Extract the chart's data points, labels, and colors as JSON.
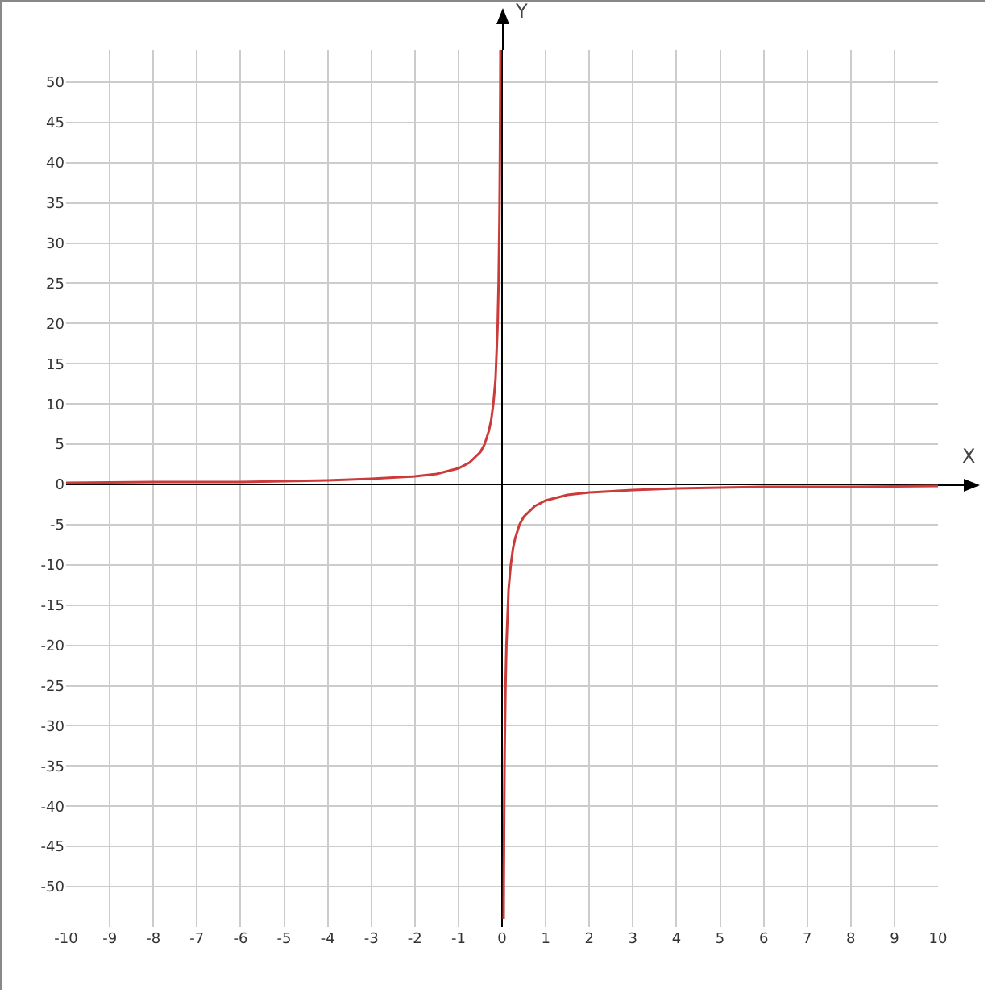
{
  "chart_data": {
    "type": "line",
    "annotations": [
      "X",
      "Y"
    ],
    "x": [
      -10,
      -8,
      -6,
      -5,
      -4,
      -3,
      -2,
      -1.5,
      -1,
      -0.75,
      -0.5,
      -0.4,
      -0.3,
      -0.25,
      -0.2,
      -0.15,
      -0.1,
      -0.08,
      -0.06,
      -0.05,
      -0.04,
      -0.037,
      0,
      0.037,
      0.04,
      0.05,
      0.06,
      0.08,
      0.1,
      0.15,
      0.2,
      0.25,
      0.3,
      0.4,
      0.5,
      0.75,
      1,
      1.5,
      2,
      3,
      4,
      5,
      6,
      8,
      10
    ],
    "series": [
      {
        "color": "#cc3a3a",
        "values": [
          0.2,
          0.3,
          0.3,
          0.4,
          0.5,
          0.7,
          1,
          1.3,
          2,
          2.7,
          4,
          5,
          6.7,
          8,
          10,
          13,
          20,
          25,
          33,
          40,
          50,
          54,
          null,
          -54,
          -50,
          -40,
          -33,
          -25,
          -20,
          -13,
          -10,
          -8,
          -6.7,
          -5,
          -4,
          -2.7,
          -2,
          -1.3,
          -1,
          -0.7,
          -0.5,
          -0.4,
          -0.3,
          -0.3,
          -0.2
        ]
      }
    ],
    "xlim": [
      -10,
      10
    ],
    "ylim": [
      -55,
      54
    ],
    "xticks": [
      -10,
      -9,
      -8,
      -7,
      -6,
      -5,
      -4,
      -3,
      -2,
      -1,
      0,
      1,
      2,
      3,
      4,
      5,
      6,
      7,
      8,
      9,
      10
    ],
    "yticks": [
      -50,
      -45,
      -40,
      -35,
      -30,
      -25,
      -20,
      -15,
      -10,
      -5,
      0,
      5,
      10,
      15,
      20,
      25,
      30,
      35,
      40,
      45,
      50
    ],
    "grid": true,
    "marker": "none",
    "line_style": "solid"
  }
}
